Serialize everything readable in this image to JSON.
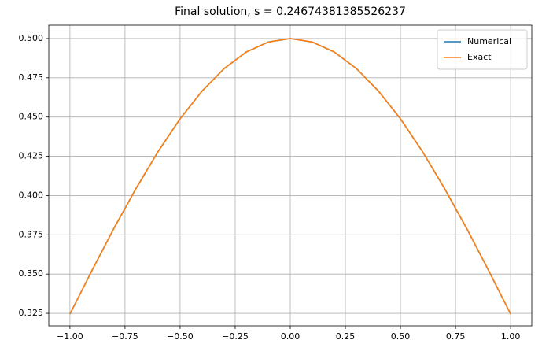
{
  "chart_data": {
    "type": "line",
    "title": "Final solution, s = 0.24674381385526237",
    "x": [
      -1,
      -0.9,
      -0.8,
      -0.7,
      -0.6,
      -0.5,
      -0.4,
      -0.3,
      -0.2,
      -0.1,
      0,
      0.1,
      0.2,
      0.3,
      0.4,
      0.5,
      0.6,
      0.7,
      0.8,
      0.9,
      1
    ],
    "series": [
      {
        "name": "Numerical",
        "color": "#1f77b4",
        "values": [
          0.3245,
          0.3523,
          0.3792,
          0.4045,
          0.428,
          0.4489,
          0.4666,
          0.4809,
          0.4914,
          0.4978,
          0.5,
          0.4978,
          0.4914,
          0.4809,
          0.4666,
          0.4489,
          0.428,
          0.4045,
          0.3792,
          0.3523,
          0.3245
        ]
      },
      {
        "name": "Exact",
        "color": "#ff7f0e",
        "values": [
          0.3245,
          0.3523,
          0.3792,
          0.4045,
          0.428,
          0.4489,
          0.4666,
          0.4809,
          0.4914,
          0.4978,
          0.5,
          0.4978,
          0.4914,
          0.4809,
          0.4666,
          0.4489,
          0.428,
          0.4045,
          0.3792,
          0.3523,
          0.3245
        ]
      }
    ],
    "xlim": [
      -1.096,
      1.096
    ],
    "ylim": [
      0.317,
      0.5085
    ],
    "xticks": [
      {
        "value": -1,
        "label": "−1.00"
      },
      {
        "value": -0.75,
        "label": "−0.75"
      },
      {
        "value": -0.5,
        "label": "−0.50"
      },
      {
        "value": -0.25,
        "label": "−0.25"
      },
      {
        "value": 0,
        "label": "0.00"
      },
      {
        "value": 0.25,
        "label": "0.25"
      },
      {
        "value": 0.5,
        "label": "0.50"
      },
      {
        "value": 0.75,
        "label": "0.75"
      },
      {
        "value": 1,
        "label": "1.00"
      }
    ],
    "yticks": [
      0.325,
      {
        "value": 0.35,
        "label": "0.350"
      },
      0.375,
      {
        "value": 0.4,
        "label": "0.400"
      },
      0.425,
      {
        "value": 0.45,
        "label": "0.450"
      },
      0.475,
      {
        "value": 0.5,
        "label": "0.500"
      }
    ],
    "grid": true,
    "legend": "upper right"
  }
}
